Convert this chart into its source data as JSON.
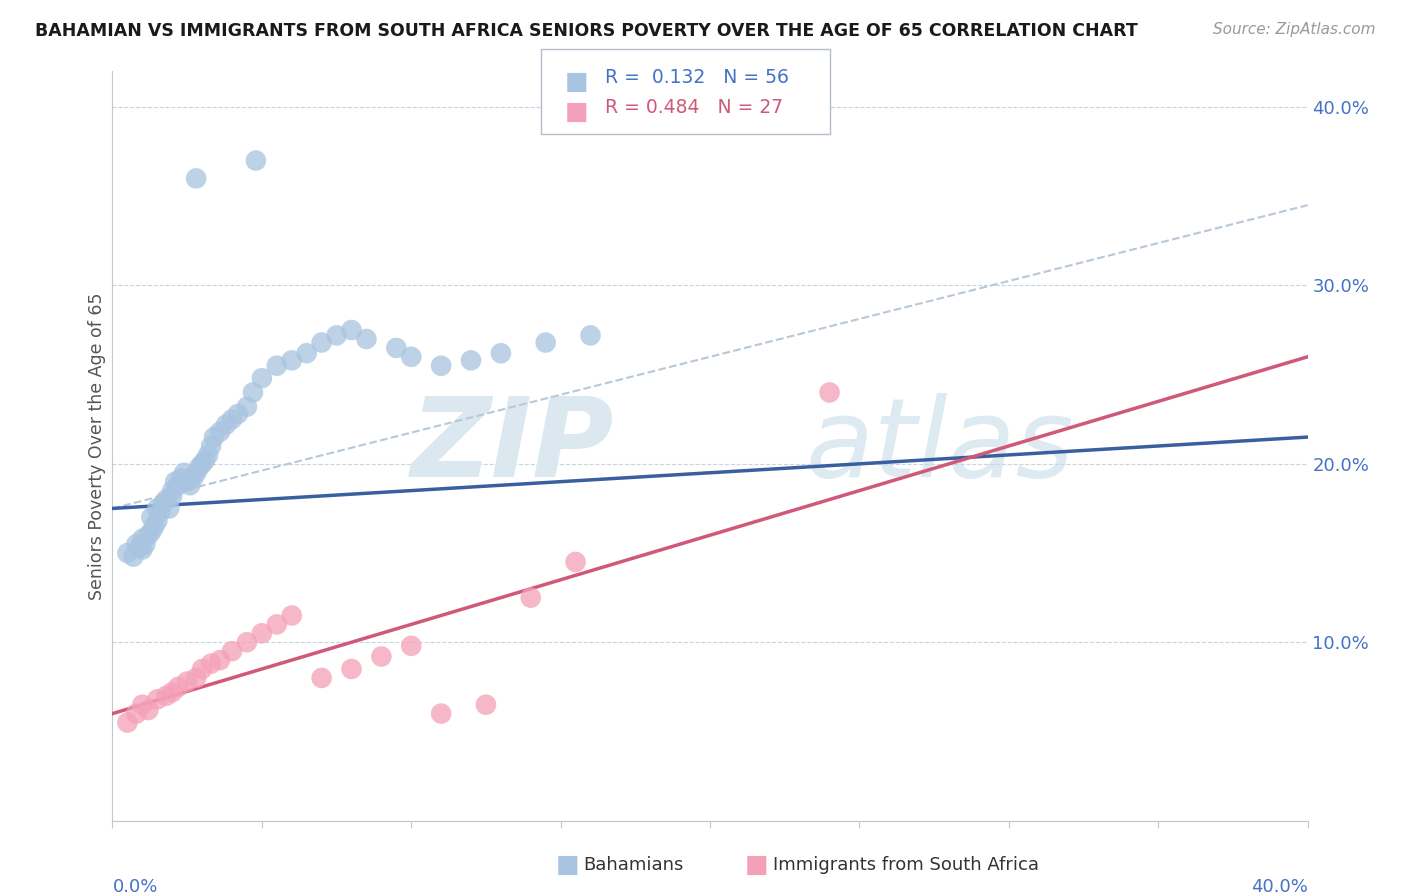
{
  "title": "BAHAMIAN VS IMMIGRANTS FROM SOUTH AFRICA SENIORS POVERTY OVER THE AGE OF 65 CORRELATION CHART",
  "source": "Source: ZipAtlas.com",
  "ylabel": "Seniors Poverty Over the Age of 65",
  "xlim": [
    0.0,
    0.4
  ],
  "ylim": [
    0.0,
    0.42
  ],
  "yticks": [
    0.0,
    0.1,
    0.2,
    0.3,
    0.4
  ],
  "right_ytick_labels": [
    "",
    "10.0%",
    "20.0%",
    "30.0%",
    "40.0%"
  ],
  "blue_color": "#a8c4e0",
  "pink_color": "#f4a0b8",
  "blue_line_color": "#3a5fa0",
  "pink_line_color": "#d05878",
  "dashed_line_color": "#b8c8d8",
  "background_color": "#ffffff",
  "legend_blue_r": "R =  0.132",
  "legend_blue_n": "N = 56",
  "legend_pink_r": "R = 0.484",
  "legend_pink_n": "N = 27",
  "blue_x": [
    0.005,
    0.007,
    0.008,
    0.009,
    0.01,
    0.01,
    0.011,
    0.012,
    0.013,
    0.013,
    0.014,
    0.015,
    0.015,
    0.016,
    0.017,
    0.018,
    0.019,
    0.02,
    0.02,
    0.021,
    0.022,
    0.023,
    0.024,
    0.025,
    0.026,
    0.027,
    0.028,
    0.029,
    0.03,
    0.031,
    0.032,
    0.033,
    0.034,
    0.036,
    0.038,
    0.04,
    0.042,
    0.045,
    0.047,
    0.05,
    0.055,
    0.06,
    0.065,
    0.07,
    0.075,
    0.08,
    0.085,
    0.095,
    0.1,
    0.11,
    0.12,
    0.13,
    0.145,
    0.16,
    0.048,
    0.028
  ],
  "blue_y": [
    0.15,
    0.148,
    0.155,
    0.153,
    0.152,
    0.158,
    0.155,
    0.16,
    0.162,
    0.17,
    0.165,
    0.168,
    0.175,
    0.173,
    0.178,
    0.18,
    0.175,
    0.182,
    0.185,
    0.19,
    0.188,
    0.192,
    0.195,
    0.19,
    0.188,
    0.192,
    0.195,
    0.198,
    0.2,
    0.202,
    0.205,
    0.21,
    0.215,
    0.218,
    0.222,
    0.225,
    0.228,
    0.232,
    0.24,
    0.248,
    0.255,
    0.258,
    0.262,
    0.268,
    0.272,
    0.275,
    0.27,
    0.265,
    0.26,
    0.255,
    0.258,
    0.262,
    0.268,
    0.272,
    0.37,
    0.36
  ],
  "pink_x": [
    0.005,
    0.008,
    0.01,
    0.012,
    0.015,
    0.018,
    0.02,
    0.022,
    0.025,
    0.028,
    0.03,
    0.033,
    0.036,
    0.04,
    0.045,
    0.05,
    0.055,
    0.06,
    0.07,
    0.08,
    0.09,
    0.1,
    0.11,
    0.125,
    0.14,
    0.155,
    0.24
  ],
  "pink_y": [
    0.055,
    0.06,
    0.065,
    0.062,
    0.068,
    0.07,
    0.072,
    0.075,
    0.078,
    0.08,
    0.085,
    0.088,
    0.09,
    0.095,
    0.1,
    0.105,
    0.11,
    0.115,
    0.08,
    0.085,
    0.092,
    0.098,
    0.06,
    0.065,
    0.125,
    0.145,
    0.24
  ],
  "blue_line_x": [
    0.0,
    0.4
  ],
  "blue_line_y": [
    0.175,
    0.215
  ],
  "pink_line_x": [
    0.0,
    0.4
  ],
  "pink_line_y": [
    0.06,
    0.26
  ],
  "dashed_line_x": [
    0.0,
    0.4
  ],
  "dashed_line_y": [
    0.175,
    0.345
  ]
}
